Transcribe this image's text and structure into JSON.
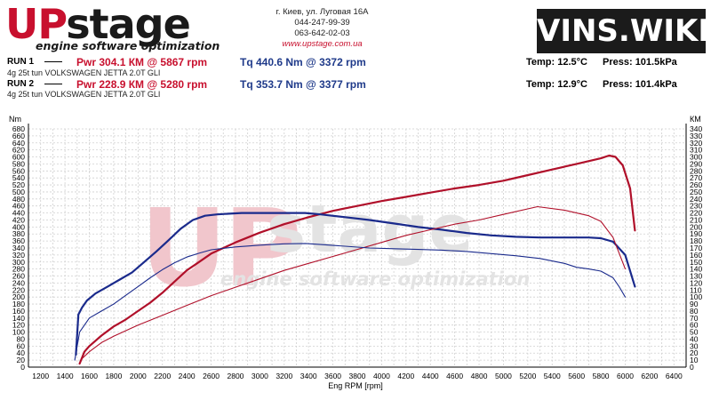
{
  "header": {
    "logo_up": "UP",
    "logo_stage": "stage",
    "logo_tagline": "engine software optimization",
    "address": "г. Киев, ул. Луговая 16А",
    "phone1": "044-247-99-39",
    "phone2": "063-642-02-03",
    "website": "www.upstage.com.ua",
    "watermark_badge": "VINS.WIKI"
  },
  "runs": [
    {
      "label": "RUN 1",
      "dash": "——",
      "power": "Pwr  304.1 КМ @ 5867 rpm",
      "torque": "Tq 440.6 Nm @ 3372 rpm",
      "temp": "Temp: 12.5°C",
      "press": "Press: 101.5kPa",
      "car": "4g 25t tun VOLKSWAGEN JETTA 2.0T GLI"
    },
    {
      "label": "RUN 2",
      "dash": "——",
      "power": "Pwr  228.9 КМ @ 5280 rpm",
      "torque": "Tq 353.7 Nm @ 3377 rpm",
      "temp": "Temp: 12.9°C",
      "press": "Press: 101.4kPa",
      "car": "4g 25t tun VOLKSWAGEN JETTA 2.0T GLI"
    }
  ],
  "colors": {
    "power_run1": "#b0102a",
    "power_run2": "#b0102a",
    "torque_run1": "#1a2a8c",
    "torque_run2": "#1a2a8c",
    "grid": "#d0d0d0",
    "watermark_red": "#f1c6cc",
    "watermark_gray": "#e3e3e3"
  },
  "chart_data": {
    "type": "line",
    "xlabel": "Eng RPM [rpm]",
    "ylabel_left": "Nm",
    "ylabel_right": "КМ",
    "xlim": [
      1100,
      6500
    ],
    "ylim_left": [
      0,
      680
    ],
    "ylim_right": [
      0,
      340
    ],
    "x_ticks": [
      1200,
      1300,
      1400,
      1500,
      1600,
      1700,
      1800,
      1900,
      2000,
      2100,
      2200,
      2300,
      2400,
      2500,
      2600,
      2700,
      2800,
      2900,
      3000,
      3100,
      3200,
      3300,
      3400,
      3500,
      3600,
      3700,
      3800,
      3900,
      4000,
      4100,
      4200,
      4300,
      4400,
      4500,
      4600,
      4700,
      4800,
      4900,
      5000,
      5100,
      5200,
      5300,
      5400,
      5500,
      5600,
      5700,
      5800,
      5900,
      6000,
      6100,
      6200,
      6300,
      6400
    ],
    "x_tick_labels": [
      "1200",
      "1400",
      "1600",
      "1800",
      "2000",
      "2200",
      "2400",
      "2600",
      "2800",
      "3000",
      "3200",
      "3400",
      "3600",
      "3800",
      "4000",
      "4200",
      "4400",
      "4600",
      "4800",
      "5000",
      "5200",
      "5400",
      "5600",
      "5800",
      "6000",
      "6200",
      "6400"
    ],
    "y_left_ticks": [
      "0",
      "20",
      "40",
      "60",
      "80",
      "100",
      "120",
      "140",
      "160",
      "180",
      "200",
      "220",
      "240",
      "260",
      "280",
      "300",
      "320",
      "340",
      "360",
      "380",
      "400",
      "420",
      "440",
      "460",
      "480",
      "500",
      "520",
      "540",
      "560",
      "580",
      "600",
      "620",
      "640",
      "660",
      "680"
    ],
    "y_right_ticks": [
      "0",
      "10",
      "20",
      "30",
      "40",
      "50",
      "60",
      "70",
      "80",
      "90",
      "100",
      "110",
      "120",
      "130",
      "140",
      "150",
      "160",
      "170",
      "180",
      "190",
      "200",
      "210",
      "220",
      "230",
      "240",
      "250",
      "260",
      "270",
      "280",
      "290",
      "300",
      "310",
      "320",
      "330",
      "340"
    ],
    "grid": true,
    "watermark": {
      "up": "UP",
      "stage": "stage",
      "tagline": "engine software optimization"
    },
    "series": [
      {
        "name": "RUN 1 Power",
        "axis": "right",
        "style": "thick",
        "x": [
          1520,
          1560,
          1600,
          1700,
          1800,
          1900,
          2000,
          2100,
          2200,
          2300,
          2400,
          2500,
          2600,
          2700,
          2800,
          3000,
          3200,
          3400,
          3600,
          3800,
          4000,
          4200,
          4400,
          4600,
          4800,
          5000,
          5200,
          5400,
          5600,
          5800,
          5867,
          5920,
          5980,
          6040,
          6080
        ],
        "y": [
          5,
          22,
          30,
          45,
          58,
          68,
          80,
          92,
          106,
          122,
          138,
          150,
          162,
          170,
          178,
          192,
          204,
          214,
          223,
          230,
          237,
          243,
          249,
          255,
          260,
          266,
          274,
          282,
          290,
          298,
          302,
          300,
          288,
          255,
          195
        ]
      },
      {
        "name": "RUN 1 Torque",
        "axis": "left",
        "style": "thick",
        "x": [
          1490,
          1510,
          1540,
          1580,
          1650,
          1750,
          1850,
          1950,
          2050,
          2150,
          2250,
          2350,
          2450,
          2550,
          2650,
          2750,
          2850,
          3000,
          3200,
          3372,
          3500,
          3700,
          3900,
          4100,
          4300,
          4500,
          4700,
          4900,
          5100,
          5300,
          5500,
          5700,
          5800,
          5900,
          6000,
          6080
        ],
        "y": [
          35,
          150,
          170,
          190,
          210,
          230,
          250,
          270,
          300,
          330,
          362,
          395,
          420,
          432,
          436,
          438,
          440,
          440,
          440,
          440,
          436,
          428,
          420,
          410,
          400,
          392,
          383,
          376,
          372,
          370,
          370,
          370,
          368,
          358,
          320,
          230
        ]
      },
      {
        "name": "RUN 2 Power",
        "axis": "right",
        "style": "thin",
        "x": [
          1540,
          1600,
          1700,
          1800,
          1900,
          2000,
          2200,
          2400,
          2600,
          2800,
          3000,
          3200,
          3400,
          3600,
          3800,
          4000,
          4200,
          4400,
          4600,
          4800,
          5000,
          5280,
          5500,
          5700,
          5800,
          5900,
          6000
        ],
        "y": [
          12,
          22,
          35,
          44,
          52,
          60,
          74,
          88,
          102,
          114,
          126,
          138,
          148,
          158,
          168,
          178,
          188,
          196,
          204,
          210,
          218,
          229,
          224,
          216,
          208,
          185,
          140
        ]
      },
      {
        "name": "RUN 2 Torque",
        "axis": "left",
        "style": "thin",
        "x": [
          1480,
          1520,
          1600,
          1700,
          1800,
          1900,
          2000,
          2100,
          2200,
          2300,
          2400,
          2500,
          2600,
          2800,
          3000,
          3200,
          3377,
          3500,
          3700,
          3900,
          4100,
          4300,
          4500,
          4700,
          4900,
          5100,
          5300,
          5500,
          5600,
          5700,
          5800,
          5900,
          5950,
          6000
        ],
        "y": [
          20,
          100,
          140,
          160,
          180,
          205,
          230,
          255,
          278,
          298,
          314,
          325,
          335,
          343,
          348,
          352,
          353,
          350,
          345,
          340,
          338,
          336,
          334,
          330,
          324,
          318,
          310,
          296,
          285,
          280,
          274,
          255,
          230,
          200
        ]
      }
    ]
  }
}
